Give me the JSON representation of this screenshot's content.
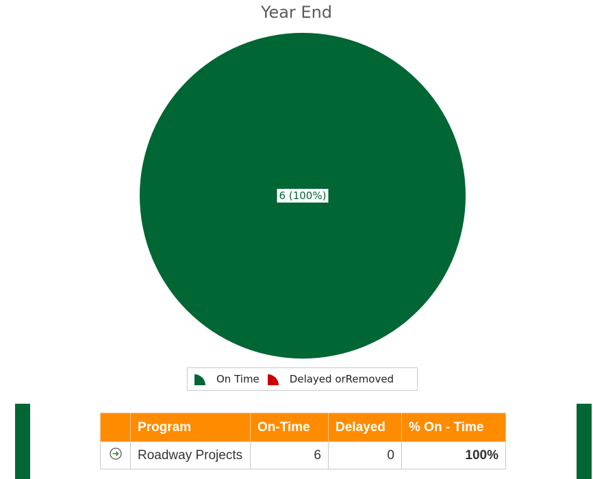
{
  "chart_data": {
    "type": "pie",
    "title": "Year End",
    "categories": [
      "On Time",
      "Delayed orRemoved"
    ],
    "values": [
      6,
      0
    ],
    "colors": [
      "#006633",
      "#cc0000"
    ],
    "slice_labels": [
      "6 (100%)",
      ""
    ],
    "legend_position": "bottom"
  },
  "legend": {
    "items": [
      {
        "label": "On Time",
        "color": "#006633"
      },
      {
        "label": "Delayed orRemoved",
        "color": "#cc0000"
      }
    ]
  },
  "table": {
    "headers": [
      "",
      "Program",
      "On-Time",
      "Delayed",
      "% On - Time"
    ],
    "rows": [
      {
        "icon": "arrow-right-circle-icon",
        "program": "Roadway Projects",
        "on_time": "6",
        "delayed": "0",
        "pct": "100%"
      }
    ]
  },
  "colors": {
    "header_bg": "#ff8c00",
    "accent_green": "#006633",
    "pct_green": "#2e8b2e"
  }
}
